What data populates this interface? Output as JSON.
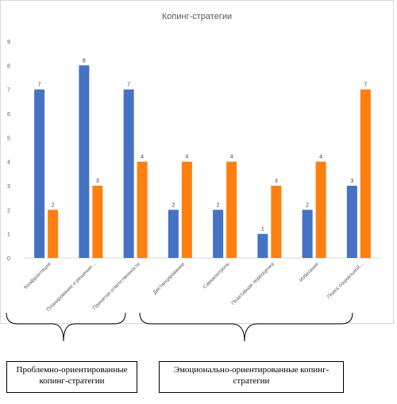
{
  "chart_data": {
    "type": "bar",
    "title": "Копинг-стратегии",
    "xlabel": "",
    "ylabel": "",
    "ylim": [
      0,
      9
    ],
    "yticks": [
      0,
      1,
      2,
      3,
      4,
      5,
      6,
      7,
      8,
      9
    ],
    "grid": false,
    "legend": "none",
    "categories": [
      "Конфронтация",
      "Планирование и решение...",
      "Принятие ответственности",
      "Дистанцирование",
      "Самоконтроль",
      "Позитивная переоценка",
      "Избегание",
      "Поиск социальной..."
    ],
    "series": [
      {
        "values": [
          7,
          8,
          7,
          2,
          2,
          1,
          2,
          3
        ],
        "color": "#4472c4"
      },
      {
        "values": [
          2,
          3,
          4,
          4,
          4,
          3,
          4,
          7
        ],
        "color": "#ff7f0e"
      }
    ]
  },
  "captions": {
    "problem": "Проблемно-ориентированные копинг-стратегии",
    "emotion": "Эмоционально-ориентированные копинг-стратегии"
  }
}
